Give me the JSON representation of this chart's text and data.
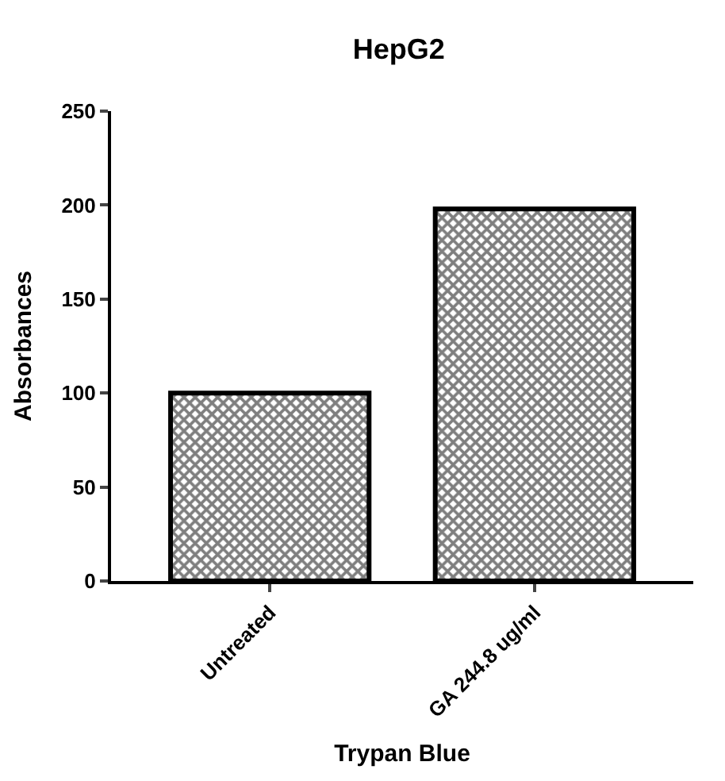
{
  "chart_data": {
    "type": "bar",
    "title": "HepG2",
    "xlabel": "Trypan Blue",
    "ylabel": "Absorbances",
    "categories": [
      "Untreated",
      "GA 244.8 ug/ml"
    ],
    "values": [
      100,
      198
    ],
    "color": "#000000",
    "ylim": [
      0,
      250
    ],
    "yticks": [
      0,
      50,
      100,
      150,
      200,
      250
    ]
  }
}
